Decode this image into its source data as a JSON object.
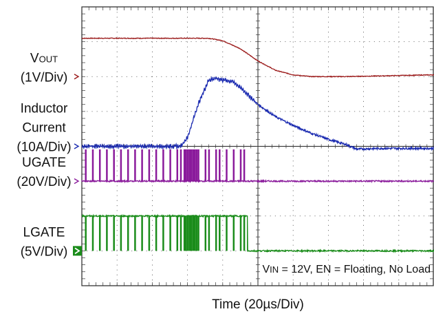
{
  "chart_data": {
    "type": "line",
    "xlabel": "Time (20µs/Div)",
    "x_divisions": 10,
    "y_divisions": 8,
    "grid": true,
    "annotation": {
      "parts": [
        {
          "text": "V",
          "sub": false
        },
        {
          "text": "IN",
          "sub": true
        },
        {
          "text": " = 12V, EN = Floating, No Load",
          "sub": false
        }
      ]
    },
    "channels": [
      {
        "id": "vout",
        "label_lines": [
          [
            {
              "text": "V",
              "sub": false
            },
            {
              "text": "OUT",
              "sub": true
            }
          ],
          [
            {
              "text": "(1V/Div)",
              "sub": false
            }
          ]
        ],
        "color": "#9b1a1a",
        "marker": "arrow",
        "ground_div": 2,
        "kind": "analog",
        "noise": 0.02,
        "points": [
          [
            0,
            1.1
          ],
          [
            3.6,
            1.1
          ],
          [
            4.0,
            1.03
          ],
          [
            4.5,
            0.8
          ],
          [
            5.0,
            0.45
          ],
          [
            5.5,
            0.18
          ],
          [
            6.0,
            0.05
          ],
          [
            6.5,
            0.0
          ],
          [
            7.5,
            0.0
          ],
          [
            8.5,
            0.02
          ],
          [
            10,
            0.05
          ]
        ]
      },
      {
        "id": "inductor",
        "label_lines": [
          [
            {
              "text": "Inductor",
              "sub": false
            }
          ],
          [
            {
              "text": "Current",
              "sub": false
            }
          ],
          [
            {
              "text": "(10A/Div)",
              "sub": false
            }
          ]
        ],
        "color": "#1a2ab0",
        "marker": "arrow",
        "ground_div": 4,
        "kind": "ripple",
        "ripple": 0.1,
        "ripple_until": 4.9,
        "noise": 0.06,
        "points": [
          [
            0,
            0.0
          ],
          [
            2.8,
            0.0
          ],
          [
            3.0,
            0.25
          ],
          [
            3.3,
            1.2
          ],
          [
            3.6,
            1.9
          ],
          [
            3.8,
            1.95
          ],
          [
            4.3,
            1.85
          ],
          [
            4.6,
            1.6
          ],
          [
            5.0,
            1.2
          ],
          [
            5.5,
            0.85
          ],
          [
            6.0,
            0.6
          ],
          [
            6.5,
            0.38
          ],
          [
            7.0,
            0.2
          ],
          [
            7.5,
            0.05
          ],
          [
            7.8,
            -0.08
          ],
          [
            8.5,
            -0.06
          ],
          [
            10,
            -0.06
          ]
        ]
      },
      {
        "id": "ugate",
        "label_lines": [
          [
            {
              "text": "UGATE",
              "sub": false
            }
          ],
          [
            {
              "text": "(20V/Div)",
              "sub": false
            }
          ]
        ],
        "color": "#8a1a9b",
        "marker": "arrow",
        "ground_div": 5,
        "kind": "pulses",
        "high": 0.9,
        "noise": 0.04,
        "pulses": [
          0.1,
          0.3,
          0.5,
          0.7,
          0.9,
          1.1,
          1.3,
          1.5,
          1.7,
          1.9,
          2.1,
          2.3,
          2.5,
          2.7,
          2.8,
          2.9,
          2.95,
          3.0,
          3.05,
          3.1,
          3.15,
          3.2,
          3.25,
          3.3,
          3.5,
          3.6,
          3.8,
          3.9,
          4.1,
          4.3,
          4.5,
          4.6
        ]
      },
      {
        "id": "lgate",
        "label_lines": [
          [
            {
              "text": "LGATE",
              "sub": false
            }
          ],
          [
            {
              "text": "(5V/Div)",
              "sub": false
            }
          ]
        ],
        "color": "#1a8c1a",
        "marker": "box",
        "ground_div": 7,
        "kind": "lgate",
        "high": 1.0,
        "dip": 0.75,
        "end": 4.7,
        "noise": 0.04,
        "dips": [
          0.1,
          0.3,
          0.5,
          0.7,
          0.9,
          1.1,
          1.3,
          1.5,
          1.7,
          1.9,
          2.1,
          2.3,
          2.5,
          2.7,
          2.8,
          2.9,
          2.95,
          3.0,
          3.05,
          3.1,
          3.15,
          3.2,
          3.25,
          3.3,
          3.5,
          3.6,
          3.8,
          3.9,
          4.1,
          4.3,
          4.5,
          4.6
        ]
      }
    ]
  }
}
